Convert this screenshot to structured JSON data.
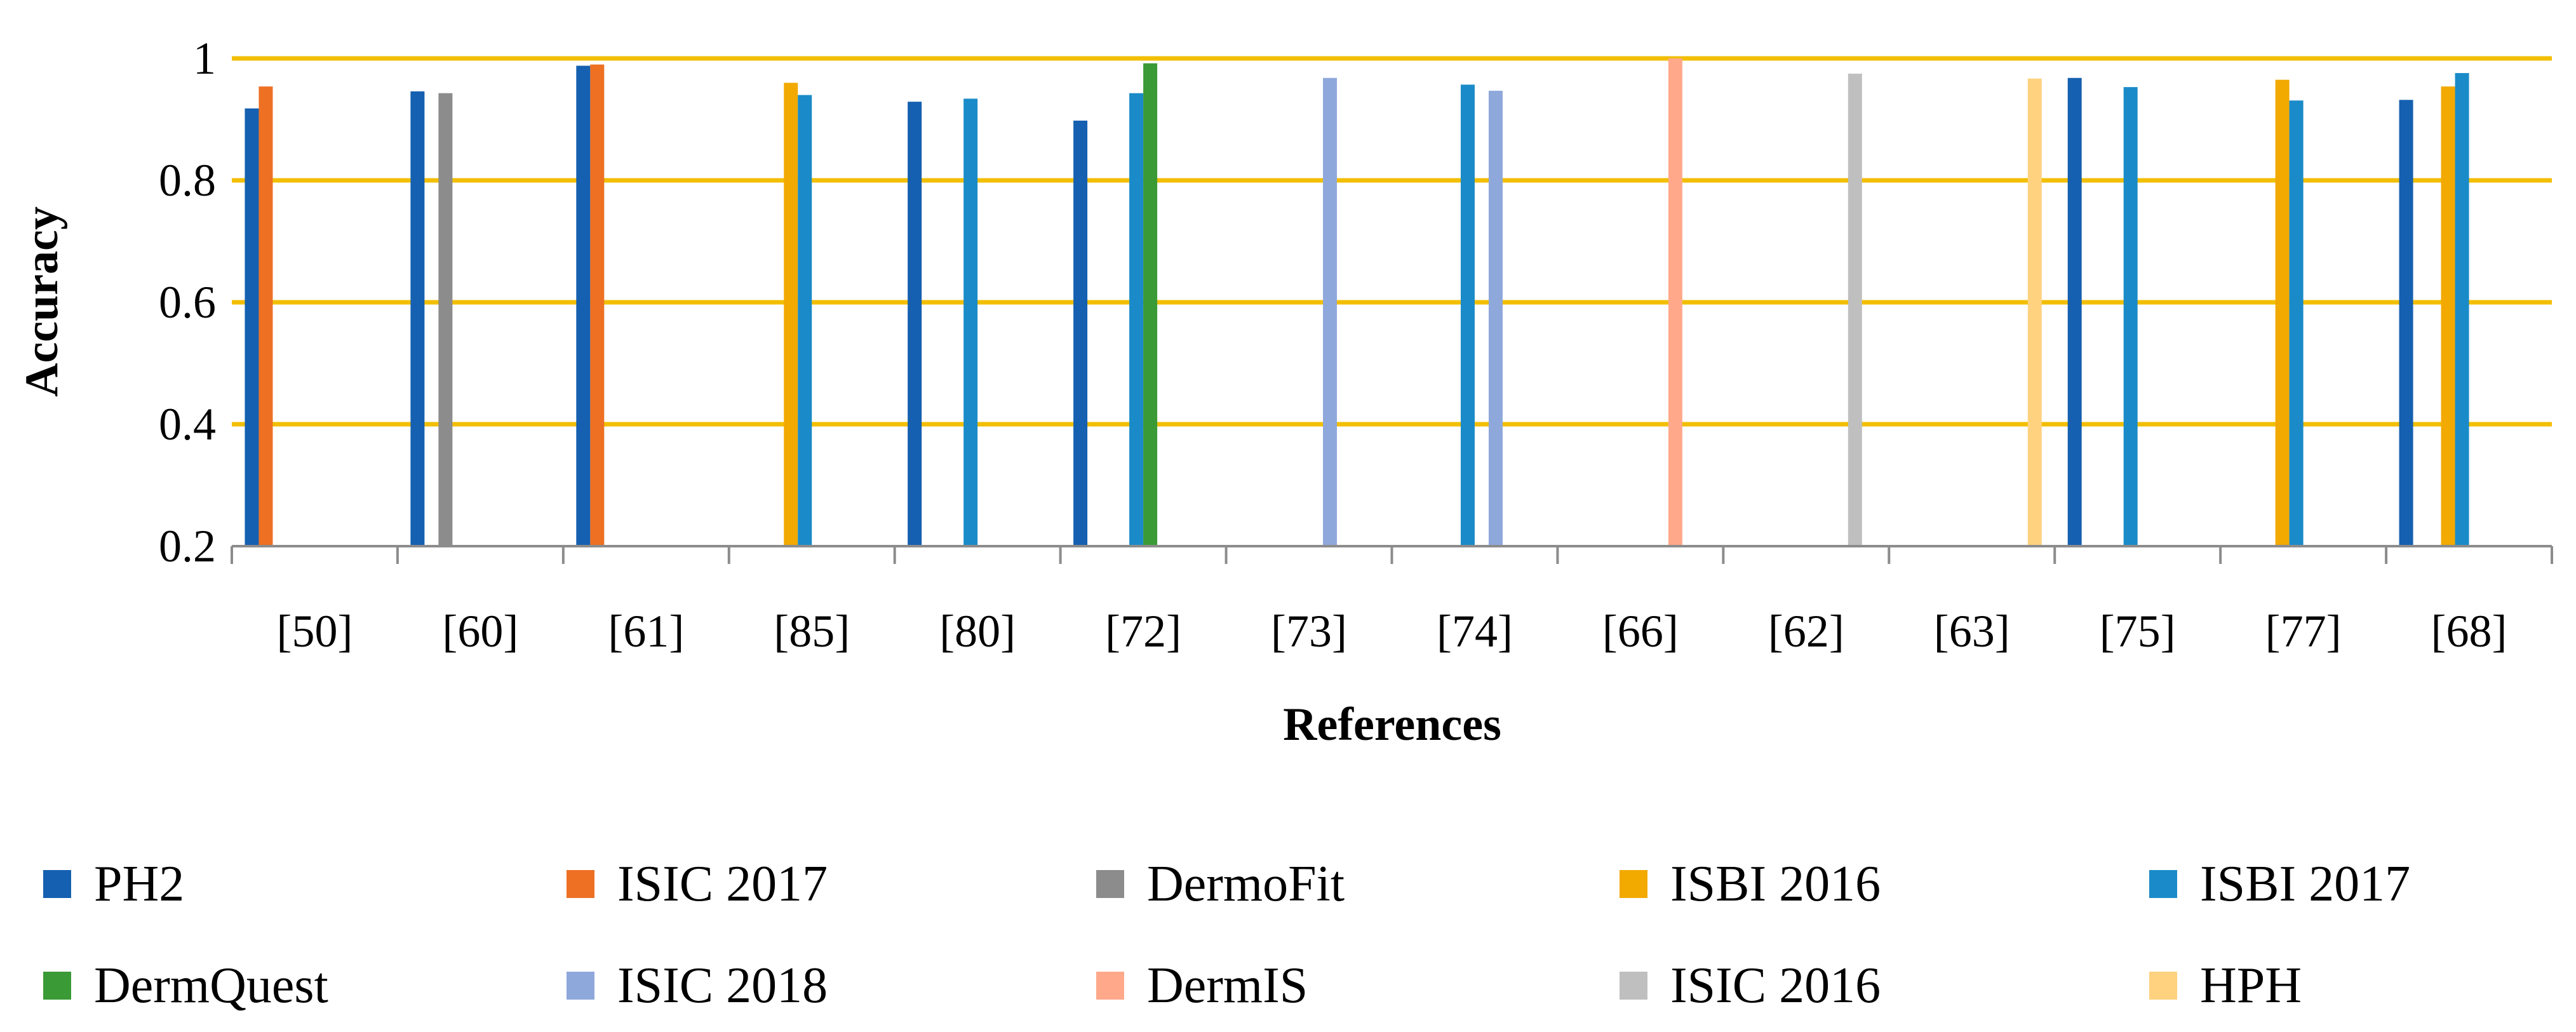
{
  "chart_data": {
    "type": "bar",
    "xlabel": "References",
    "ylabel": "Accuracy",
    "ylim": [
      0.2,
      1.0
    ],
    "yticks": [
      "0.2",
      "0.4",
      "0.6",
      "0.8",
      "1"
    ],
    "grid": "horizontal",
    "legend_position": "bottom",
    "categories": [
      "[50]",
      "[60]",
      "[61]",
      "[85]",
      "[80]",
      "[72]",
      "[73]",
      "[74]",
      "[66]",
      "[62]",
      "[63]",
      "[75]",
      "[77]",
      "[68]"
    ],
    "series": [
      {
        "name": "PH2",
        "color": "#1560B0",
        "values": [
          0.918,
          0.946,
          0.988,
          null,
          0.929,
          0.898,
          null,
          null,
          null,
          null,
          null,
          0.968,
          null,
          0.932
        ]
      },
      {
        "name": "ISIC 2017",
        "color": "#ED7023",
        "values": [
          0.954,
          null,
          0.99,
          null,
          null,
          null,
          null,
          null,
          null,
          null,
          null,
          null,
          null,
          null
        ]
      },
      {
        "name": "DermoFit",
        "color": "#8C8C8C",
        "values": [
          null,
          0.943,
          null,
          null,
          null,
          null,
          null,
          null,
          null,
          null,
          null,
          null,
          null,
          null
        ]
      },
      {
        "name": "ISBI 2016",
        "color": "#F2A900",
        "values": [
          null,
          null,
          null,
          0.96,
          null,
          null,
          null,
          null,
          null,
          null,
          null,
          null,
          0.965,
          0.954
        ]
      },
      {
        "name": "ISBI 2017",
        "color": "#1A8BC8",
        "values": [
          null,
          null,
          null,
          0.94,
          0.934,
          0.943,
          null,
          0.957,
          null,
          null,
          null,
          0.953,
          0.931,
          0.976
        ]
      },
      {
        "name": "DermQuest",
        "color": "#3A9A35",
        "values": [
          null,
          null,
          null,
          null,
          null,
          0.992,
          null,
          null,
          null,
          null,
          null,
          null,
          null,
          null
        ]
      },
      {
        "name": "ISIC 2018",
        "color": "#8FA8DC",
        "values": [
          null,
          null,
          null,
          null,
          null,
          null,
          0.968,
          0.947,
          null,
          null,
          null,
          null,
          null,
          null
        ]
      },
      {
        "name": "DermIS",
        "color": "#FFA98A",
        "values": [
          null,
          null,
          null,
          null,
          null,
          null,
          null,
          null,
          1.0,
          null,
          null,
          null,
          null,
          null
        ]
      },
      {
        "name": "ISIC 2016",
        "color": "#BFBFBF",
        "values": [
          null,
          null,
          null,
          null,
          null,
          null,
          null,
          null,
          null,
          0.975,
          null,
          null,
          null,
          null
        ]
      },
      {
        "name": "HPH",
        "color": "#FFD27F",
        "values": [
          null,
          null,
          null,
          null,
          null,
          null,
          null,
          null,
          null,
          null,
          0.967,
          null,
          null,
          null
        ]
      }
    ],
    "colors": {
      "gridline": "#F2BE00",
      "axis": "#8C8C8C"
    }
  }
}
